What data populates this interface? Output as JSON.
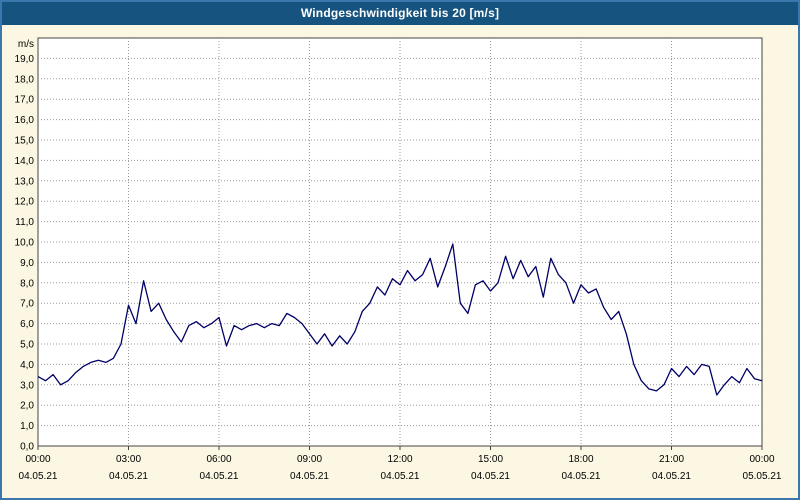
{
  "window": {
    "title": "Windgeschwindigkeit bis 20 [m/s]"
  },
  "colors": {
    "title_bar": "#16537E",
    "frame_border": "#3A77AD",
    "page_background": "#FBF7E3",
    "plot_background": "#FFFFFF",
    "plot_border": "#444444",
    "grid": "#999999",
    "line": "#000066"
  },
  "chart_data": {
    "type": "line",
    "title": "Windgeschwindigkeit bis 20 [m/s]",
    "xlabel": "",
    "ylabel": "m/s",
    "ylim": [
      0,
      20
    ],
    "xlim_hours": [
      0,
      24
    ],
    "grid": true,
    "y_tick_labels": [
      "0,0",
      "1,0",
      "2,0",
      "3,0",
      "4,0",
      "5,0",
      "6,0",
      "7,0",
      "8,0",
      "9,0",
      "10,0",
      "11,0",
      "12,0",
      "13,0",
      "14,0",
      "15,0",
      "16,0",
      "17,0",
      "18,0",
      "19,0"
    ],
    "x_ticks": [
      {
        "hour": 0,
        "time": "00:00",
        "date": "04.05.21"
      },
      {
        "hour": 3,
        "time": "03:00",
        "date": "04.05.21"
      },
      {
        "hour": 6,
        "time": "06:00",
        "date": "04.05.21"
      },
      {
        "hour": 9,
        "time": "09:00",
        "date": "04.05.21"
      },
      {
        "hour": 12,
        "time": "12:00",
        "date": "04.05.21"
      },
      {
        "hour": 15,
        "time": "15:00",
        "date": "04.05.21"
      },
      {
        "hour": 18,
        "time": "18:00",
        "date": "04.05.21"
      },
      {
        "hour": 21,
        "time": "21:00",
        "date": "04.05.21"
      },
      {
        "hour": 24,
        "time": "00:00",
        "date": "05.05.21"
      }
    ],
    "series": [
      {
        "name": "Windgeschwindigkeit [m/s]",
        "color": "#000066",
        "points": [
          [
            0,
            3.4
          ],
          [
            0.25,
            3.2
          ],
          [
            0.5,
            3.5
          ],
          [
            0.75,
            3.0
          ],
          [
            1,
            3.2
          ],
          [
            1.25,
            3.6
          ],
          [
            1.5,
            3.9
          ],
          [
            1.75,
            4.1
          ],
          [
            2,
            4.2
          ],
          [
            2.25,
            4.1
          ],
          [
            2.5,
            4.3
          ],
          [
            2.75,
            5.0
          ],
          [
            3,
            6.9
          ],
          [
            3.25,
            6.0
          ],
          [
            3.5,
            8.1
          ],
          [
            3.75,
            6.6
          ],
          [
            4,
            7.0
          ],
          [
            4.25,
            6.2
          ],
          [
            4.5,
            5.6
          ],
          [
            4.75,
            5.1
          ],
          [
            5,
            5.9
          ],
          [
            5.25,
            6.1
          ],
          [
            5.5,
            5.8
          ],
          [
            5.75,
            6.0
          ],
          [
            6,
            6.3
          ],
          [
            6.25,
            4.9
          ],
          [
            6.5,
            5.9
          ],
          [
            6.75,
            5.7
          ],
          [
            7,
            5.9
          ],
          [
            7.25,
            6.0
          ],
          [
            7.5,
            5.8
          ],
          [
            7.75,
            6.0
          ],
          [
            8,
            5.9
          ],
          [
            8.25,
            6.5
          ],
          [
            8.5,
            6.3
          ],
          [
            8.75,
            6.0
          ],
          [
            9,
            5.5
          ],
          [
            9.25,
            5.0
          ],
          [
            9.5,
            5.5
          ],
          [
            9.75,
            4.9
          ],
          [
            10,
            5.4
          ],
          [
            10.25,
            5.0
          ],
          [
            10.5,
            5.6
          ],
          [
            10.75,
            6.6
          ],
          [
            11,
            7.0
          ],
          [
            11.25,
            7.8
          ],
          [
            11.5,
            7.4
          ],
          [
            11.75,
            8.2
          ],
          [
            12,
            7.9
          ],
          [
            12.25,
            8.6
          ],
          [
            12.5,
            8.1
          ],
          [
            12.75,
            8.4
          ],
          [
            13,
            9.2
          ],
          [
            13.25,
            7.8
          ],
          [
            13.5,
            8.8
          ],
          [
            13.75,
            9.9
          ],
          [
            14,
            7.0
          ],
          [
            14.25,
            6.5
          ],
          [
            14.5,
            7.9
          ],
          [
            14.75,
            8.1
          ],
          [
            15,
            7.6
          ],
          [
            15.25,
            8.0
          ],
          [
            15.5,
            9.3
          ],
          [
            15.75,
            8.2
          ],
          [
            16,
            9.1
          ],
          [
            16.25,
            8.3
          ],
          [
            16.5,
            8.8
          ],
          [
            16.75,
            7.3
          ],
          [
            17,
            9.2
          ],
          [
            17.25,
            8.4
          ],
          [
            17.5,
            8.0
          ],
          [
            17.75,
            7.0
          ],
          [
            18,
            7.9
          ],
          [
            18.25,
            7.5
          ],
          [
            18.5,
            7.7
          ],
          [
            18.75,
            6.8
          ],
          [
            19,
            6.2
          ],
          [
            19.25,
            6.6
          ],
          [
            19.5,
            5.5
          ],
          [
            19.75,
            4.0
          ],
          [
            20,
            3.2
          ],
          [
            20.25,
            2.8
          ],
          [
            20.5,
            2.7
          ],
          [
            20.75,
            3.0
          ],
          [
            21,
            3.8
          ],
          [
            21.25,
            3.4
          ],
          [
            21.5,
            3.9
          ],
          [
            21.75,
            3.5
          ],
          [
            22,
            4.0
          ],
          [
            22.25,
            3.9
          ],
          [
            22.5,
            2.5
          ],
          [
            22.75,
            3.0
          ],
          [
            23,
            3.4
          ],
          [
            23.25,
            3.1
          ],
          [
            23.5,
            3.8
          ],
          [
            23.75,
            3.3
          ],
          [
            24,
            3.2
          ]
        ]
      }
    ]
  }
}
